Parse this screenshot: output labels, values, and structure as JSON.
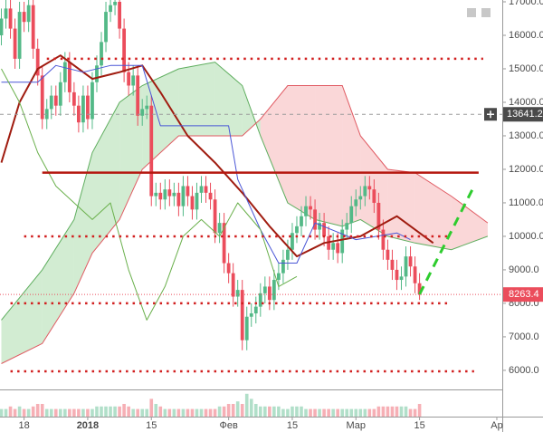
{
  "chart_data": {
    "type": "candlestick",
    "x": [
      -19,
      -18,
      -17,
      -16,
      -15,
      -14,
      -13,
      -12,
      -11,
      -10,
      -9,
      -8,
      -7,
      -6,
      -5,
      -4,
      -3,
      -2,
      -1,
      0,
      1,
      2,
      3,
      4,
      5,
      6,
      7,
      8,
      9,
      10,
      11,
      12,
      13,
      14,
      15,
      16,
      17,
      18,
      19,
      20,
      21,
      22,
      23,
      24,
      25,
      26,
      27,
      28,
      29,
      30,
      31,
      32,
      33,
      34,
      35,
      36,
      37,
      38,
      39,
      40,
      41,
      42,
      43,
      44,
      45,
      46,
      47,
      48,
      49,
      50,
      51,
      52,
      53,
      54,
      55,
      56,
      57,
      58,
      59,
      60,
      61,
      62,
      63,
      64,
      65,
      66,
      67,
      68,
      69,
      70,
      71,
      72,
      73
    ],
    "open": [
      16000,
      16500,
      16800,
      16200,
      15300,
      16700,
      16400,
      16900,
      15600,
      14800,
      13500,
      13800,
      14200,
      13900,
      14600,
      15200,
      14300,
      13900,
      13400,
      14200,
      13500,
      14600,
      15100,
      15800,
      16700,
      16900,
      17000,
      16200,
      14900,
      14500,
      14800,
      13600,
      13800,
      13900,
      11200,
      11300,
      11100,
      11400,
      11200,
      11300,
      10900,
      11500,
      11200,
      10800,
      11300,
      11500,
      11300,
      11100,
      10100,
      10400,
      9200,
      8900,
      8200,
      8400,
      6900,
      7600,
      7700,
      7900,
      8300,
      8500,
      8100,
      8700,
      8900,
      9300,
      9600,
      10100,
      10300,
      10600,
      10900,
      10800,
      10200,
      10400,
      10000,
      9600,
      9800,
      9500,
      10200,
      10400,
      10900,
      11100,
      11200,
      11500,
      11400,
      11000,
      10200,
      9600,
      9300,
      9000,
      8700,
      8800,
      9400,
      9100,
      8600
    ],
    "high": [
      16800,
      17100,
      17100,
      16500,
      17000,
      17000,
      17200,
      17200,
      15900,
      15100,
      14100,
      14500,
      14500,
      14900,
      15500,
      15500,
      14600,
      14200,
      14500,
      14500,
      14900,
      15400,
      16100,
      17000,
      17200,
      17300,
      17300,
      16500,
      15200,
      15100,
      15100,
      14100,
      14200,
      14200,
      11600,
      11600,
      11700,
      11700,
      11600,
      11600,
      11800,
      11800,
      11500,
      11600,
      11800,
      11800,
      11600,
      11400,
      10700,
      10700,
      9500,
      9200,
      8700,
      8700,
      7900,
      8000,
      8200,
      8600,
      8800,
      8800,
      9000,
      9200,
      9600,
      9900,
      10400,
      10600,
      10900,
      11200,
      11200,
      11100,
      10700,
      10700,
      10300,
      10100,
      10100,
      10500,
      10700,
      11200,
      11400,
      11500,
      11800,
      11800,
      11700,
      11300,
      10500,
      9900,
      9600,
      9300,
      9100,
      9700,
      9700,
      9400,
      8900
    ],
    "low": [
      15700,
      16200,
      15900,
      15000,
      15000,
      16100,
      16100,
      15300,
      14500,
      13200,
      13200,
      13500,
      13600,
      13600,
      14300,
      14000,
      13600,
      13100,
      13100,
      13200,
      13200,
      14300,
      14800,
      15500,
      16400,
      16600,
      15900,
      14600,
      14200,
      14200,
      13300,
      13300,
      13500,
      10900,
      10900,
      10800,
      10800,
      10900,
      10900,
      10600,
      10600,
      10900,
      10500,
      10500,
      11000,
      11000,
      10800,
      9800,
      9800,
      8900,
      8600,
      7900,
      7900,
      6600,
      6600,
      7300,
      7400,
      7600,
      8000,
      7800,
      7800,
      8400,
      8600,
      9000,
      9300,
      9800,
      10000,
      10300,
      10500,
      9900,
      9900,
      9700,
      9300,
      9300,
      9200,
      9200,
      9900,
      10100,
      10600,
      10800,
      10900,
      11100,
      10700,
      9900,
      9300,
      9000,
      8700,
      8400,
      8400,
      8500,
      8800,
      8300,
      8100
    ],
    "close": [
      16500,
      16800,
      16200,
      15300,
      16700,
      16400,
      16900,
      15600,
      14800,
      13500,
      13800,
      14200,
      13900,
      14600,
      15200,
      14300,
      13900,
      13400,
      14200,
      13500,
      14600,
      15100,
      15800,
      16700,
      16900,
      17000,
      16200,
      14900,
      14500,
      14800,
      13600,
      13800,
      13900,
      11200,
      11300,
      11100,
      11400,
      11200,
      11300,
      10900,
      11500,
      11200,
      10800,
      11300,
      11500,
      11300,
      11100,
      10100,
      10400,
      9200,
      8900,
      8200,
      8400,
      6900,
      7600,
      7700,
      7900,
      8300,
      8500,
      8100,
      8700,
      8900,
      9300,
      9600,
      10100,
      10300,
      10600,
      10900,
      10800,
      10200,
      10400,
      10000,
      9600,
      9800,
      9500,
      10200,
      10400,
      10900,
      11100,
      11200,
      11500,
      11400,
      11000,
      10200,
      9600,
      9300,
      9000,
      8700,
      8800,
      9400,
      9100,
      8600,
      8263.4
    ],
    "volume": [
      3,
      3,
      4,
      3,
      4,
      3,
      3,
      4,
      5,
      5,
      3,
      3,
      3,
      3,
      3,
      3,
      3,
      3,
      3,
      3,
      3,
      4,
      4,
      4,
      4,
      4,
      4,
      5,
      4,
      3,
      3,
      3,
      3,
      7,
      5,
      4,
      3,
      3,
      3,
      3,
      3,
      3,
      3,
      3,
      3,
      3,
      3,
      3,
      4,
      4,
      5,
      5,
      6,
      5,
      9,
      7,
      5,
      4,
      4,
      4,
      4,
      4,
      3,
      3,
      4,
      4,
      4,
      3,
      3,
      3,
      3,
      3,
      3,
      3,
      3,
      3,
      3,
      3,
      3,
      3,
      3,
      3,
      3,
      4,
      4,
      4,
      4,
      4,
      4,
      4,
      3,
      3,
      5
    ],
    "volume_lim": [
      0,
      10
    ],
    "up_color": "#53b987",
    "down_color": "#eb4d5c",
    "xlim": [
      -19.3,
      91.2
    ],
    "ylim": [
      5430,
      17054
    ],
    "xticks": [
      {
        "value": -14,
        "label": "18"
      },
      {
        "value": 0,
        "label": "2018"
      },
      {
        "value": 14,
        "label": "15"
      },
      {
        "value": 31,
        "label": "Фев"
      },
      {
        "value": 45,
        "label": "15"
      },
      {
        "value": 59,
        "label": "Мар"
      },
      {
        "value": 73,
        "label": "15"
      },
      {
        "value": 90,
        "label": "Ap"
      }
    ],
    "yticks": [
      {
        "value": 6000,
        "label": "6000.0"
      },
      {
        "value": 7000,
        "label": "7000.0"
      },
      {
        "value": 8000,
        "label": "8000.0"
      },
      {
        "value": 9000,
        "label": "9000.0"
      },
      {
        "value": 10000,
        "label": "10000.0"
      },
      {
        "value": 11000,
        "label": "11000.0"
      },
      {
        "value": 12000,
        "label": "12000.0"
      },
      {
        "value": 13000,
        "label": "13000.0"
      },
      {
        "value": 14000,
        "label": "14000.0"
      },
      {
        "value": 15000,
        "label": "15000.0"
      },
      {
        "value": 16000,
        "label": "16000.0"
      },
      {
        "value": 17000,
        "label": "17000.0"
      }
    ],
    "cloud": {
      "x": [
        -19,
        -10,
        -3,
        1,
        7,
        12,
        20,
        28,
        34,
        38,
        44,
        50,
        56,
        60,
        66,
        72,
        80,
        88
      ],
      "span_a": [
        7500,
        9000,
        10500,
        12500,
        14000,
        14500,
        15000,
        15200,
        14500,
        13000,
        11000,
        10500,
        10300,
        10500,
        10000,
        9800,
        9600,
        10000
      ],
      "span_b": [
        6200,
        6800,
        8300,
        9500,
        10500,
        12000,
        13000,
        13000,
        13000,
        13500,
        14500,
        14500,
        14500,
        13000,
        12000,
        11900,
        11200,
        10400
      ],
      "up_color": "#8fcf8f",
      "down_color": "#f29a9e",
      "a_color": "#5fae5f",
      "b_color": "#e05a62"
    },
    "lines": [
      {
        "color": "#a01c10",
        "width": 2,
        "x": [
          -19,
          -15,
          -11,
          -6,
          1,
          7,
          12,
          16,
          22,
          28,
          34,
          40,
          46,
          52,
          60,
          68,
          76
        ],
        "values": [
          12200,
          14000,
          15000,
          15400,
          14700,
          14900,
          15100,
          14300,
          13000,
          12200,
          11300,
          10300,
          9400,
          9800,
          10000,
          10600,
          9800
        ]
      },
      {
        "color": "#4a56d6",
        "width": 1,
        "x": [
          -19,
          -11,
          -7,
          -1,
          5,
          12,
          16,
          31,
          33,
          38,
          42,
          46,
          50,
          59,
          68,
          71
        ],
        "values": [
          14600,
          14600,
          15100,
          14900,
          15100,
          15100,
          13300,
          13300,
          11700,
          10200,
          9200,
          9200,
          10400,
          9900,
          10100,
          9900
        ]
      },
      {
        "color": "#6ab04c",
        "width": 1,
        "x": [
          -19,
          -15,
          -11,
          -7,
          -3,
          1,
          5,
          9,
          13,
          17,
          21,
          25,
          29,
          33,
          38,
          42,
          46
        ],
        "values": [
          15000,
          14000,
          12500,
          11500,
          11000,
          10500,
          11000,
          9000,
          7500,
          8500,
          10000,
          10500,
          10000,
          11000,
          10200,
          8500,
          8800
        ]
      }
    ],
    "levels": [
      {
        "value": 15300,
        "x": [
          -9,
          87
        ],
        "color": "#d11f1f",
        "style": "dotted"
      },
      {
        "value": 11900,
        "x": [
          -10,
          86
        ],
        "color": "#b5170f",
        "style": "solid"
      },
      {
        "value": 10000,
        "x": [
          -14,
          80
        ],
        "color": "#d11f1f",
        "style": "dotted"
      },
      {
        "value": 8000,
        "x": [
          -17,
          80
        ],
        "color": "#d11f1f",
        "style": "dotted"
      },
      {
        "value": 5970,
        "x": [
          -17,
          85
        ],
        "color": "#d11f1f",
        "style": "dotted"
      }
    ],
    "trend": {
      "x": [
        73,
        85
      ],
      "values": [
        8270,
        11500
      ],
      "color": "#2ecc2e"
    },
    "crosshair_price": {
      "value": 13641.2,
      "label": "13641.2"
    },
    "last_price": {
      "value": 8263.4,
      "label": "8263.4"
    }
  }
}
